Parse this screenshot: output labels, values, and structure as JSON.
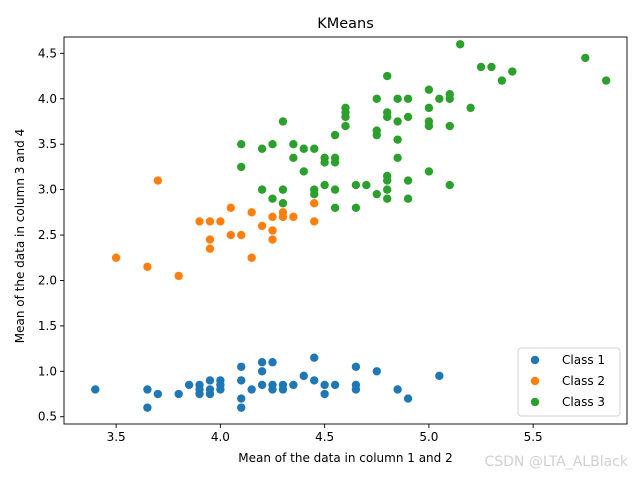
{
  "chart_data": {
    "type": "scatter",
    "title": "KMeans",
    "xlabel": "Mean of the data in column 1 and 2",
    "ylabel": "Mean of the data in column 3 and 4",
    "xlim": [
      3.25,
      5.95
    ],
    "ylim": [
      0.42,
      4.68
    ],
    "x_ticks": [
      "3.5",
      "4.0",
      "4.5",
      "5.0",
      "5.5"
    ],
    "y_ticks": [
      "0.5",
      "1.0",
      "1.5",
      "2.0",
      "2.5",
      "3.0",
      "3.5",
      "4.0",
      "4.5"
    ],
    "grid": false,
    "legend_position": "bottom-right",
    "series": [
      {
        "name": "Class 1",
        "color": "#1f77b4",
        "points": [
          [
            3.4,
            0.8
          ],
          [
            3.65,
            0.8
          ],
          [
            3.65,
            0.6
          ],
          [
            3.7,
            0.75
          ],
          [
            3.8,
            0.75
          ],
          [
            3.85,
            0.85
          ],
          [
            3.9,
            0.85
          ],
          [
            3.9,
            0.75
          ],
          [
            3.9,
            0.8
          ],
          [
            3.95,
            0.9
          ],
          [
            3.95,
            0.8
          ],
          [
            3.95,
            0.75
          ],
          [
            4.0,
            0.9
          ],
          [
            4.0,
            0.85
          ],
          [
            4.0,
            0.8
          ],
          [
            4.1,
            1.05
          ],
          [
            4.1,
            0.9
          ],
          [
            4.1,
            0.7
          ],
          [
            4.1,
            0.6
          ],
          [
            4.15,
            0.8
          ],
          [
            4.2,
            1.1
          ],
          [
            4.2,
            1.0
          ],
          [
            4.2,
            0.85
          ],
          [
            4.25,
            1.1
          ],
          [
            4.25,
            0.85
          ],
          [
            4.25,
            0.8
          ],
          [
            4.3,
            0.85
          ],
          [
            4.3,
            0.8
          ],
          [
            4.35,
            0.85
          ],
          [
            4.4,
            0.95
          ],
          [
            4.45,
            1.15
          ],
          [
            4.45,
            0.9
          ],
          [
            4.5,
            0.85
          ],
          [
            4.5,
            0.75
          ],
          [
            4.55,
            0.85
          ],
          [
            4.65,
            1.05
          ],
          [
            4.65,
            0.85
          ],
          [
            4.65,
            0.8
          ],
          [
            4.75,
            1.0
          ],
          [
            4.85,
            0.8
          ],
          [
            4.9,
            0.7
          ],
          [
            5.05,
            0.95
          ]
        ]
      },
      {
        "name": "Class 2",
        "color": "#ff7f0e",
        "points": [
          [
            3.5,
            2.25
          ],
          [
            3.65,
            2.15
          ],
          [
            3.7,
            3.1
          ],
          [
            3.8,
            2.05
          ],
          [
            3.9,
            2.65
          ],
          [
            3.95,
            2.65
          ],
          [
            3.95,
            2.45
          ],
          [
            3.95,
            2.35
          ],
          [
            4.0,
            2.65
          ],
          [
            4.05,
            2.8
          ],
          [
            4.05,
            2.5
          ],
          [
            4.1,
            2.5
          ],
          [
            4.15,
            2.75
          ],
          [
            4.15,
            2.25
          ],
          [
            4.2,
            2.6
          ],
          [
            4.25,
            2.7
          ],
          [
            4.25,
            2.55
          ],
          [
            4.25,
            2.45
          ],
          [
            4.3,
            2.75
          ],
          [
            4.3,
            2.7
          ],
          [
            4.35,
            2.7
          ],
          [
            4.45,
            2.85
          ],
          [
            4.45,
            2.65
          ]
        ]
      },
      {
        "name": "Class 3",
        "color": "#2ca02c",
        "points": [
          [
            4.1,
            3.5
          ],
          [
            4.1,
            3.25
          ],
          [
            4.2,
            3.45
          ],
          [
            4.2,
            3.0
          ],
          [
            4.25,
            3.5
          ],
          [
            4.25,
            2.9
          ],
          [
            4.3,
            3.75
          ],
          [
            4.3,
            3.0
          ],
          [
            4.3,
            2.85
          ],
          [
            4.35,
            3.5
          ],
          [
            4.35,
            3.35
          ],
          [
            4.4,
            3.45
          ],
          [
            4.4,
            3.2
          ],
          [
            4.45,
            3.45
          ],
          [
            4.45,
            3.0
          ],
          [
            4.45,
            2.95
          ],
          [
            4.5,
            3.35
          ],
          [
            4.5,
            3.3
          ],
          [
            4.5,
            3.05
          ],
          [
            4.55,
            3.6
          ],
          [
            4.55,
            3.35
          ],
          [
            4.55,
            3.3
          ],
          [
            4.55,
            3.0
          ],
          [
            4.55,
            2.8
          ],
          [
            4.6,
            3.9
          ],
          [
            4.6,
            3.85
          ],
          [
            4.6,
            3.8
          ],
          [
            4.6,
            3.7
          ],
          [
            4.65,
            3.05
          ],
          [
            4.65,
            2.8
          ],
          [
            4.7,
            3.05
          ],
          [
            4.75,
            4.0
          ],
          [
            4.75,
            3.65
          ],
          [
            4.75,
            3.6
          ],
          [
            4.75,
            2.95
          ],
          [
            4.8,
            4.25
          ],
          [
            4.8,
            3.85
          ],
          [
            4.8,
            3.8
          ],
          [
            4.8,
            3.15
          ],
          [
            4.8,
            3.1
          ],
          [
            4.8,
            3.0
          ],
          [
            4.8,
            2.9
          ],
          [
            4.85,
            4.0
          ],
          [
            4.85,
            3.75
          ],
          [
            4.85,
            3.55
          ],
          [
            4.85,
            3.35
          ],
          [
            4.9,
            4.0
          ],
          [
            4.9,
            3.8
          ],
          [
            4.9,
            3.1
          ],
          [
            4.9,
            2.9
          ],
          [
            5.0,
            4.1
          ],
          [
            5.0,
            3.9
          ],
          [
            5.0,
            3.75
          ],
          [
            5.0,
            3.7
          ],
          [
            5.0,
            3.2
          ],
          [
            5.05,
            4.0
          ],
          [
            5.1,
            4.05
          ],
          [
            5.1,
            4.0
          ],
          [
            5.1,
            3.7
          ],
          [
            5.1,
            3.05
          ],
          [
            5.15,
            4.6
          ],
          [
            5.2,
            3.9
          ],
          [
            5.25,
            4.35
          ],
          [
            5.3,
            4.35
          ],
          [
            5.35,
            4.2
          ],
          [
            5.4,
            4.3
          ],
          [
            5.75,
            4.45
          ],
          [
            5.85,
            4.2
          ]
        ]
      }
    ]
  },
  "watermark": "CSDN @LTA_ALBlack"
}
